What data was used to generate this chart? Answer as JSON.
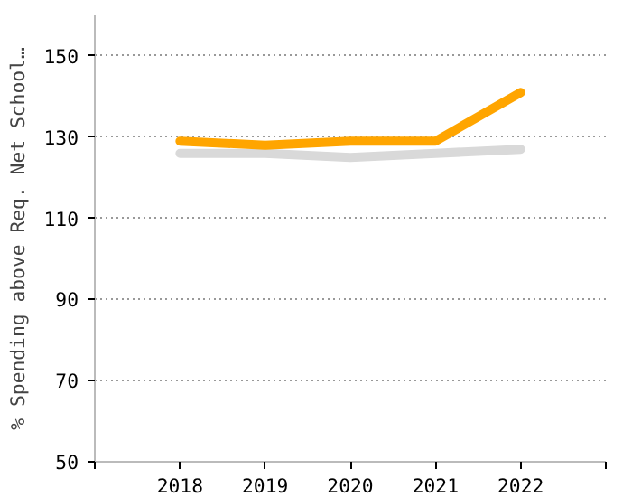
{
  "chart_data": {
    "type": "line",
    "ylabel": "% Spending above Req. Net School…",
    "x": [
      2018,
      2019,
      2020,
      2021,
      2022
    ],
    "xlim": [
      2017,
      2023
    ],
    "xticks": [
      {
        "value": 2017,
        "label": null
      },
      2018,
      2019,
      2020,
      2021,
      2022,
      {
        "value": 2023,
        "label": null
      }
    ],
    "ylim": [
      50,
      160
    ],
    "yticks": [
      50,
      70,
      90,
      110,
      130,
      150
    ],
    "grid": "y",
    "line_style": "solid",
    "marker": "none",
    "series": [
      {
        "color": "#d9d9d9",
        "values": [
          126,
          126,
          125,
          126,
          127
        ]
      },
      {
        "color": "#ffa500",
        "values": [
          129,
          128,
          129,
          129,
          141
        ]
      }
    ]
  }
}
